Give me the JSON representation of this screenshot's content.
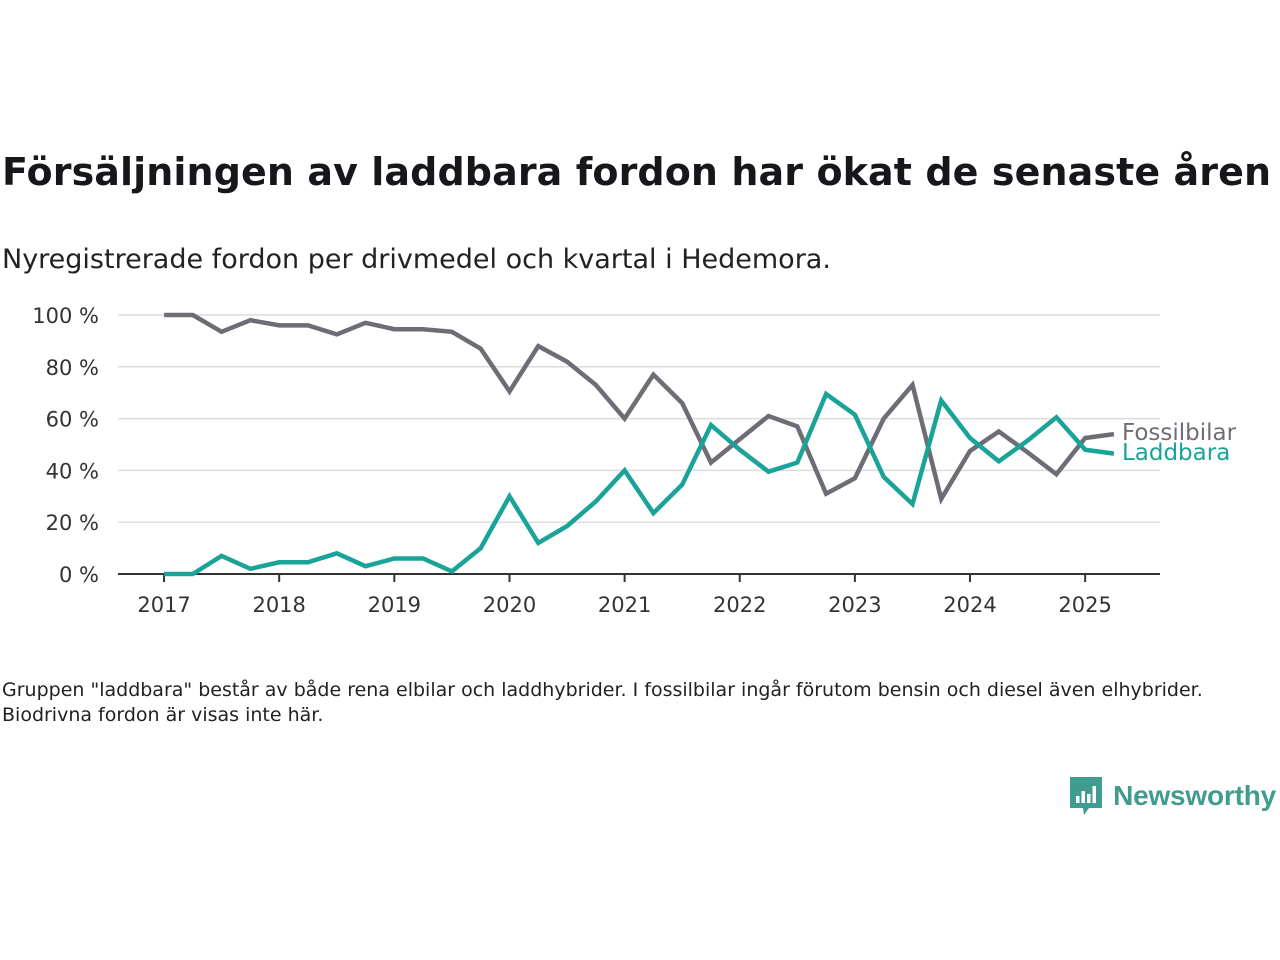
{
  "title": "Försäljningen av laddbara fordon har ökat de senaste åren",
  "subtitle": "Nyregistrerade fordon per drivmedel och kvartal i Hedemora.",
  "note": "Gruppen \"laddbara\" består av både rena elbilar och laddhybrider. I fossilbilar ingår förutom bensin och diesel även elhybrider. Biodrivna fordon är visas inte här.",
  "brand": {
    "name": "Newsworthy",
    "icon": "newsworthy-logo-icon",
    "color": "#3f9c8e"
  },
  "chart_data": {
    "type": "line",
    "x_start": 2017.0,
    "x_step": 0.25,
    "xlim": [
      2016.6,
      2025.65
    ],
    "ylim": [
      0,
      100
    ],
    "y_ticks": [
      0,
      20,
      40,
      60,
      80,
      100
    ],
    "y_tick_labels": [
      "0 %",
      "20 %",
      "40 %",
      "60 %",
      "80 %",
      "100 %"
    ],
    "x_ticks": [
      2017,
      2018,
      2019,
      2020,
      2021,
      2022,
      2023,
      2024,
      2025
    ],
    "x_tick_labels": [
      "2017",
      "2018",
      "2019",
      "2020",
      "2021",
      "2022",
      "2023",
      "2024",
      "2025"
    ],
    "grid": true,
    "legend": "end-of-line labels",
    "series": [
      {
        "name": "Fossilbilar",
        "color": "#6e6d75",
        "values": [
          100,
          100,
          93.5,
          98,
          96,
          96,
          92.5,
          97,
          94.5,
          94.5,
          93.5,
          87,
          70.5,
          88,
          82,
          73,
          60,
          77,
          66,
          43,
          52,
          61,
          57,
          31,
          37,
          60,
          73,
          29,
          47.5,
          55,
          47,
          38.5,
          52.5,
          54
        ]
      },
      {
        "name": "Laddbara",
        "color": "#1aa398",
        "values": [
          0,
          0,
          7,
          2,
          4.5,
          4.5,
          8,
          3,
          6,
          6,
          1,
          10,
          30,
          12,
          18.5,
          28,
          40,
          23.5,
          34.5,
          57.5,
          48,
          39.5,
          43,
          69.5,
          61.5,
          37.5,
          27,
          67,
          52.5,
          43.5,
          51.5,
          60.5,
          48,
          46.5
        ]
      }
    ]
  }
}
